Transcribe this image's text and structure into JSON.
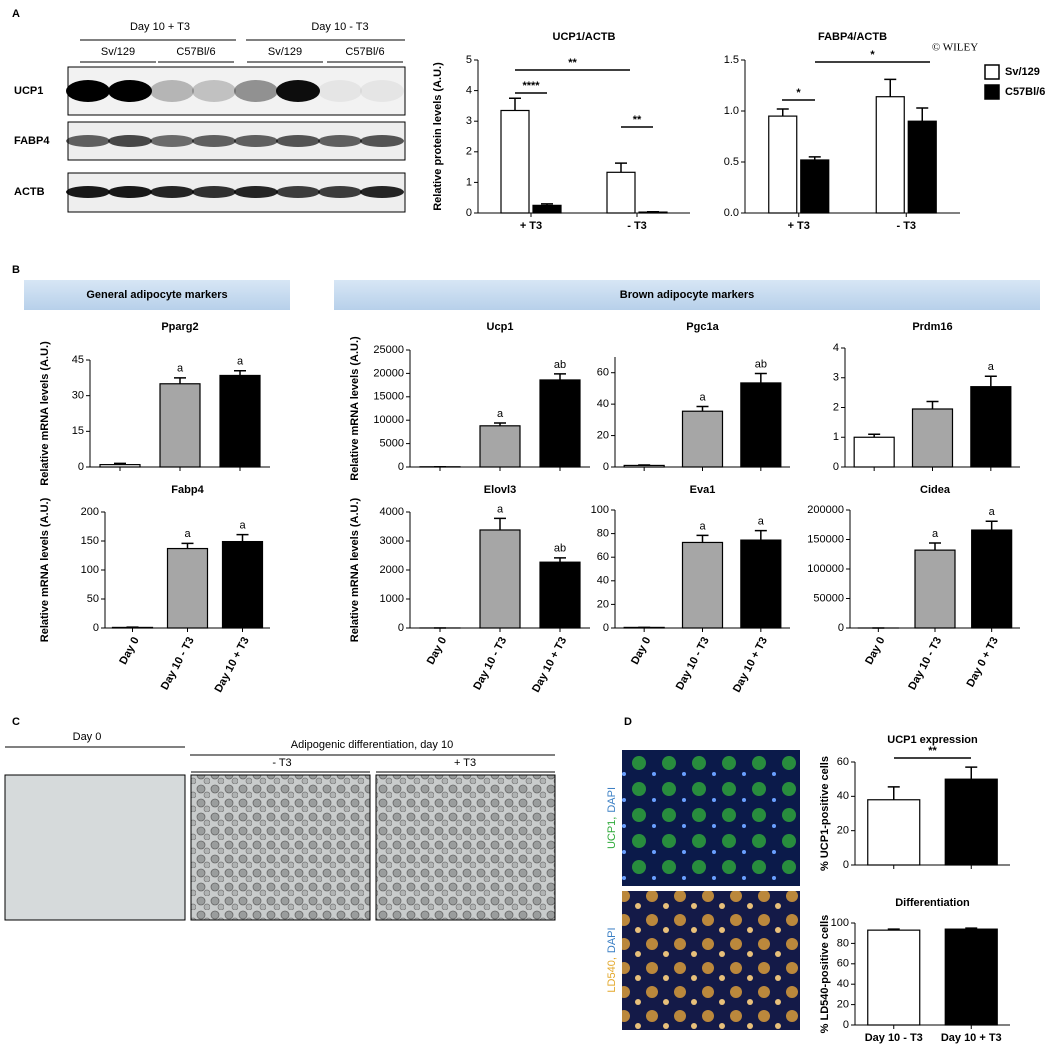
{
  "panel_labels": [
    "A",
    "B",
    "C",
    "D"
  ],
  "watermark": "© WILEY",
  "blot": {
    "groups": [
      "Day 10 + T3",
      "Day 10 - T3"
    ],
    "strains": [
      "Sv/129",
      "C57Bl/6",
      "Sv/129",
      "C57Bl/6"
    ],
    "rows": [
      "UCP1",
      "FABP4",
      "ACTB"
    ]
  },
  "section_headers": [
    "General adipocyte markers",
    "Brown adipocyte markers"
  ],
  "panel_c": {
    "title": "Adipogenic differentiation, day 10",
    "images": [
      "Day 0",
      "- T3",
      "+ T3"
    ]
  },
  "panel_d": {
    "images": [
      [
        "UCP1,",
        "DAPI"
      ],
      [
        "LD540,",
        "DAPI"
      ]
    ]
  },
  "chart_data": [
    {
      "type": "bar",
      "title": "UCP1/ACTB",
      "y_label": "Relative protein levels (A.U.)",
      "categories": [
        "+ T3",
        "- T3"
      ],
      "series": [
        {
          "name": "Sv/129",
          "color": "#ffffff",
          "values": [
            3.35,
            1.33
          ],
          "errors": [
            0.4,
            0.3
          ]
        },
        {
          "name": "C57Bl/6",
          "color": "#000000",
          "values": [
            0.25,
            0.03
          ],
          "errors": [
            0.05,
            0.01
          ]
        }
      ],
      "ylim": [
        0,
        5
      ],
      "yticks": [
        0,
        1,
        2,
        3,
        4,
        5
      ],
      "annotations": [
        "****",
        "**",
        "**"
      ],
      "legend": "right"
    },
    {
      "type": "bar",
      "title": "FABP4/ACTB",
      "categories": [
        "+ T3",
        "- T3"
      ],
      "series": [
        {
          "name": "Sv/129",
          "color": "#ffffff",
          "values": [
            0.95,
            1.14
          ],
          "errors": [
            0.07,
            0.17
          ]
        },
        {
          "name": "C57Bl/6",
          "color": "#000000",
          "values": [
            0.52,
            0.9
          ],
          "errors": [
            0.03,
            0.13
          ]
        }
      ],
      "ylim": [
        0,
        1.5
      ],
      "yticks": [
        {
          "value": 0,
          "label": "0.0"
        },
        0.5,
        {
          "value": 1,
          "label": "1.0"
        },
        1.5
      ],
      "annotations": [
        "*",
        "*"
      ]
    },
    {
      "type": "bar",
      "title": "Pparg2",
      "y_label": "Relative mRNA levels (A.U.)",
      "categories": [
        null,
        null,
        null
      ],
      "colors": [
        "#ffffff",
        "#a6a6a6",
        "#000000"
      ],
      "values": [
        1,
        35,
        38.5
      ],
      "errors": [
        0.5,
        2.5,
        2
      ],
      "bar_annotations": [
        null,
        "a",
        "a"
      ],
      "ylim": [
        0,
        45
      ],
      "yticks": [
        0,
        15,
        30,
        45
      ]
    },
    {
      "type": "bar",
      "title": "Ucp1",
      "y_label": "Relative mRNA levels (A.U.)",
      "categories": [
        null,
        null,
        null
      ],
      "colors": [
        "#ffffff",
        "#a6a6a6",
        "#000000"
      ],
      "values": [
        50,
        8800,
        18600
      ],
      "errors": [
        0,
        600,
        1300
      ],
      "bar_annotations": [
        null,
        "a",
        "ab"
      ],
      "ylim": [
        0,
        25000
      ],
      "yticks": [
        0,
        5000,
        10000,
        15000,
        20000,
        25000
      ]
    },
    {
      "type": "bar",
      "title": "Pgc1a",
      "categories": [
        null,
        null,
        null
      ],
      "colors": [
        "#ffffff",
        "#a6a6a6",
        "#000000"
      ],
      "values": [
        1,
        35.5,
        53.5
      ],
      "errors": [
        0.3,
        3,
        6
      ],
      "bar_annotations": [
        null,
        "a",
        "ab"
      ],
      "ylim": [
        0,
        70
      ],
      "yticks": [
        0,
        20,
        40,
        60
      ]
    },
    {
      "type": "bar",
      "title": "Prdm16",
      "categories": [
        null,
        null,
        null
      ],
      "colors": [
        "#ffffff",
        "#a6a6a6",
        "#000000"
      ],
      "values": [
        1,
        1.95,
        2.7
      ],
      "errors": [
        0.1,
        0.25,
        0.35
      ],
      "bar_annotations": [
        null,
        null,
        "a"
      ],
      "ylim": [
        0,
        4
      ],
      "yticks": [
        0,
        1,
        2,
        3,
        4
      ]
    },
    {
      "type": "bar",
      "title": "Fabp4",
      "y_label": "Relative mRNA levels (A.U.)",
      "categories": [
        "Day 0",
        "Day 10 - T3",
        "Day 10 + T3"
      ],
      "colors": [
        "#ffffff",
        "#a6a6a6",
        "#000000"
      ],
      "values": [
        1,
        137,
        149
      ],
      "errors": [
        0.5,
        9,
        12
      ],
      "bar_annotations": [
        null,
        "a",
        "a"
      ],
      "ylim": [
        0,
        200
      ],
      "yticks": [
        0,
        50,
        100,
        150,
        200
      ]
    },
    {
      "type": "bar",
      "title": "Elovl3",
      "y_label": "Relative mRNA levels (A.U.)",
      "categories": [
        "Day 0",
        "Day 10 - T3",
        "Day 10 + T3"
      ],
      "colors": [
        "#ffffff",
        "#a6a6a6",
        "#000000"
      ],
      "values": [
        1,
        3380,
        2270
      ],
      "errors": [
        0,
        400,
        150
      ],
      "bar_annotations": [
        null,
        "a",
        "ab"
      ],
      "ylim": [
        0,
        4000
      ],
      "yticks": [
        0,
        1000,
        2000,
        3000,
        4000
      ]
    },
    {
      "type": "bar",
      "title": "Eva1",
      "categories": [
        "Day 0",
        "Day 10 - T3",
        "Day 10 + T3"
      ],
      "colors": [
        "#ffffff",
        "#a6a6a6",
        "#000000"
      ],
      "values": [
        0.5,
        72.5,
        74.5
      ],
      "errors": [
        0,
        6,
        8
      ],
      "bar_annotations": [
        null,
        "a",
        "a"
      ],
      "ylim": [
        0,
        100
      ],
      "yticks": [
        0,
        20,
        40,
        60,
        80,
        100
      ]
    },
    {
      "type": "bar",
      "title": "Cidea",
      "categories": [
        "Day 0",
        "Day 10 - T3",
        "Day 0 + T3"
      ],
      "colors": [
        "#ffffff",
        "#a6a6a6",
        "#000000"
      ],
      "values": [
        1,
        132000,
        166000
      ],
      "errors": [
        0,
        12000,
        15000
      ],
      "bar_annotations": [
        null,
        "a",
        "a"
      ],
      "ylim": [
        0,
        200000
      ],
      "yticks": [
        0,
        50000,
        100000,
        150000,
        200000
      ]
    },
    {
      "type": "bar",
      "title": "UCP1 expression",
      "y_label": "% UCP1-positive cells",
      "categories": [
        null,
        null
      ],
      "colors": [
        "#ffffff",
        "#000000"
      ],
      "values": [
        38,
        50
      ],
      "errors": [
        7.5,
        7
      ],
      "ylim": [
        0,
        60
      ],
      "yticks": [
        0,
        20,
        40,
        60
      ],
      "annotations": [
        "**"
      ]
    },
    {
      "type": "bar",
      "title": "Differentiation",
      "y_label": "% LD540-positive cells",
      "categories": [
        "Day 10 - T3",
        "Day 10 + T3"
      ],
      "colors": [
        "#ffffff",
        "#000000"
      ],
      "values": [
        93,
        94
      ],
      "errors": [
        1,
        1
      ],
      "ylim": [
        0,
        100
      ],
      "yticks": [
        0,
        20,
        40,
        60,
        80,
        100
      ]
    }
  ]
}
